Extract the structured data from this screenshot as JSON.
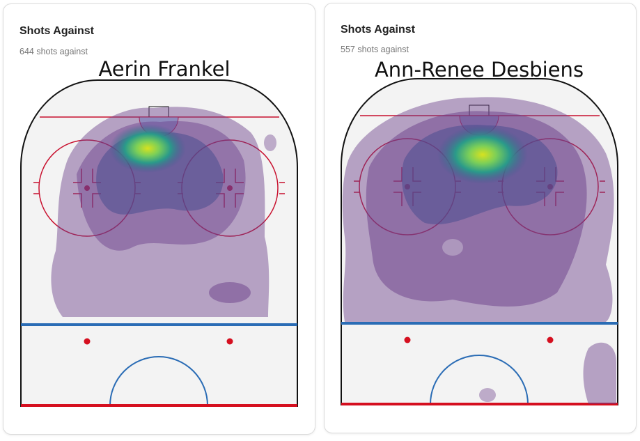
{
  "cards": [
    {
      "title": "Shots Against",
      "subtitle": "644 shots against",
      "player": "Aerin Frankel"
    },
    {
      "title": "Shots Against",
      "subtitle": "557 shots against",
      "player": "Ann-Renee Desbiens"
    }
  ]
}
